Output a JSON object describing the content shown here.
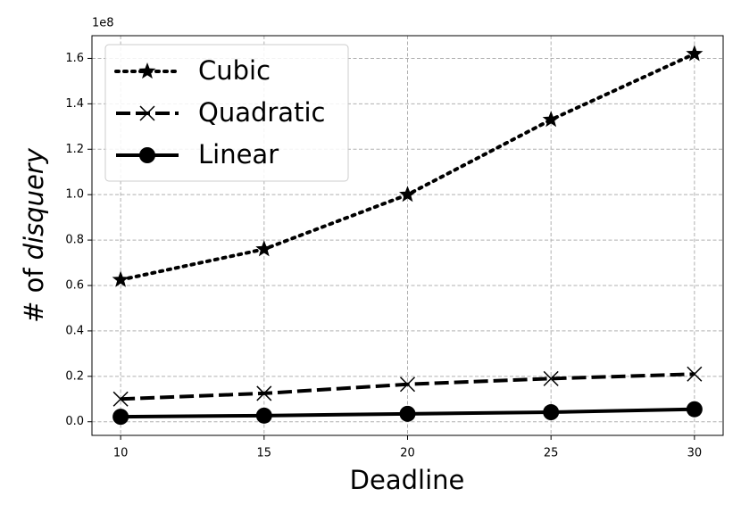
{
  "chart_data": {
    "type": "line",
    "xlabel": "Deadline",
    "ylabel": [
      "# of",
      "disquery"
    ],
    "offset_label": "1e8",
    "x": [
      10,
      15,
      20,
      25,
      30
    ],
    "xlim": [
      9,
      31
    ],
    "xticks": [
      10,
      15,
      20,
      25,
      30
    ],
    "ylim": [
      -0.06,
      1.7
    ],
    "yticks": [
      {
        "value": 0,
        "label": "0.0"
      },
      0.2,
      0.4,
      0.6,
      0.8,
      {
        "value": 1,
        "label": "1.0"
      },
      1.2,
      1.4,
      1.6
    ],
    "grid": true,
    "legend": "upper left",
    "series": [
      {
        "name": "Cubic",
        "color": "#000000",
        "linestyle": "dotted",
        "marker": "star",
        "values": [
          0.625,
          0.76,
          1.0,
          1.33,
          1.62
        ]
      },
      {
        "name": "Quadratic",
        "color": "#000000",
        "linestyle": "dashed",
        "marker": "x",
        "values": [
          0.1,
          0.125,
          0.165,
          0.19,
          0.21
        ]
      },
      {
        "name": "Linear",
        "color": "#000000",
        "linestyle": "solid",
        "marker": "circle",
        "values": [
          0.022,
          0.027,
          0.035,
          0.042,
          0.055
        ]
      }
    ]
  }
}
